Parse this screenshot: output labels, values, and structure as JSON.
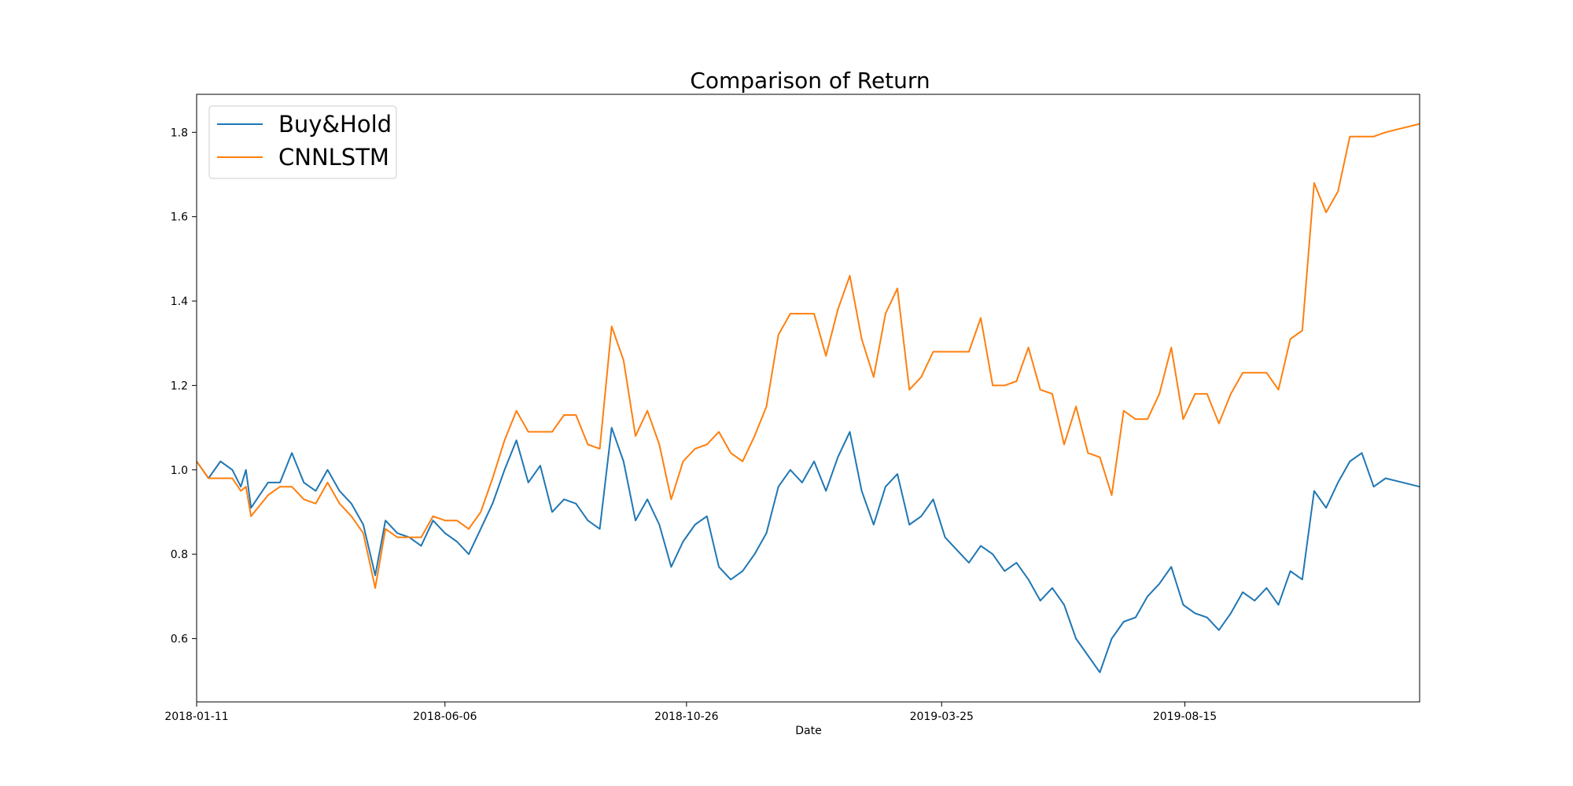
{
  "chart_data": {
    "type": "line",
    "title": "Comparison of Return",
    "xlabel": "Date",
    "ylabel": "",
    "x_range": [
      "2018-01-11",
      "2019-12-31"
    ],
    "ylim": [
      0.45,
      1.89
    ],
    "grid": false,
    "legend_position": "upper-left",
    "x_ticks": [
      "2018-01-11",
      "2018-06-06",
      "2018-10-26",
      "2019-03-25",
      "2019-08-15"
    ],
    "y_ticks": [
      "0.6",
      "0.8",
      "1.0",
      "1.2",
      "1.4",
      "1.6",
      "1.8"
    ],
    "series": [
      {
        "name": "Buy&Hold",
        "color": "#1f77b4",
        "points": [
          [
            "2018-01-11",
            1.02
          ],
          [
            "2018-01-18",
            0.98
          ],
          [
            "2018-01-25",
            1.02
          ],
          [
            "2018-02-01",
            1.0
          ],
          [
            "2018-02-06",
            0.96
          ],
          [
            "2018-02-09",
            1.0
          ],
          [
            "2018-02-12",
            0.91
          ],
          [
            "2018-02-22",
            0.97
          ],
          [
            "2018-03-01",
            0.97
          ],
          [
            "2018-03-08",
            1.04
          ],
          [
            "2018-03-15",
            0.97
          ],
          [
            "2018-03-22",
            0.95
          ],
          [
            "2018-03-29",
            1.0
          ],
          [
            "2018-04-05",
            0.95
          ],
          [
            "2018-04-12",
            0.92
          ],
          [
            "2018-04-19",
            0.87
          ],
          [
            "2018-04-26",
            0.75
          ],
          [
            "2018-05-02",
            0.88
          ],
          [
            "2018-05-09",
            0.85
          ],
          [
            "2018-05-16",
            0.84
          ],
          [
            "2018-05-23",
            0.82
          ],
          [
            "2018-05-30",
            0.88
          ],
          [
            "2018-06-06",
            0.85
          ],
          [
            "2018-06-13",
            0.83
          ],
          [
            "2018-06-20",
            0.8
          ],
          [
            "2018-06-27",
            0.86
          ],
          [
            "2018-07-04",
            0.92
          ],
          [
            "2018-07-11",
            1.0
          ],
          [
            "2018-07-18",
            1.07
          ],
          [
            "2018-07-25",
            0.97
          ],
          [
            "2018-08-01",
            1.01
          ],
          [
            "2018-08-08",
            0.9
          ],
          [
            "2018-08-15",
            0.93
          ],
          [
            "2018-08-22",
            0.92
          ],
          [
            "2018-08-29",
            0.88
          ],
          [
            "2018-09-05",
            0.86
          ],
          [
            "2018-09-12",
            1.1
          ],
          [
            "2018-09-19",
            1.02
          ],
          [
            "2018-09-26",
            0.88
          ],
          [
            "2018-10-03",
            0.93
          ],
          [
            "2018-10-10",
            0.87
          ],
          [
            "2018-10-17",
            0.77
          ],
          [
            "2018-10-24",
            0.83
          ],
          [
            "2018-10-31",
            0.87
          ],
          [
            "2018-11-07",
            0.89
          ],
          [
            "2018-11-14",
            0.77
          ],
          [
            "2018-11-21",
            0.74
          ],
          [
            "2018-11-28",
            0.76
          ],
          [
            "2018-12-05",
            0.8
          ],
          [
            "2018-12-12",
            0.85
          ],
          [
            "2018-12-19",
            0.96
          ],
          [
            "2018-12-26",
            1.0
          ],
          [
            "2019-01-02",
            0.97
          ],
          [
            "2019-01-09",
            1.02
          ],
          [
            "2019-01-16",
            0.95
          ],
          [
            "2019-01-23",
            1.03
          ],
          [
            "2019-01-30",
            1.09
          ],
          [
            "2019-02-06",
            0.95
          ],
          [
            "2019-02-13",
            0.87
          ],
          [
            "2019-02-20",
            0.96
          ],
          [
            "2019-02-27",
            0.99
          ],
          [
            "2019-03-06",
            0.87
          ],
          [
            "2019-03-13",
            0.89
          ],
          [
            "2019-03-20",
            0.93
          ],
          [
            "2019-03-27",
            0.84
          ],
          [
            "2019-04-03",
            0.81
          ],
          [
            "2019-04-10",
            0.78
          ],
          [
            "2019-04-17",
            0.82
          ],
          [
            "2019-04-24",
            0.8
          ],
          [
            "2019-05-01",
            0.76
          ],
          [
            "2019-05-08",
            0.78
          ],
          [
            "2019-05-15",
            0.74
          ],
          [
            "2019-05-22",
            0.69
          ],
          [
            "2019-05-29",
            0.72
          ],
          [
            "2019-06-05",
            0.68
          ],
          [
            "2019-06-12",
            0.6
          ],
          [
            "2019-06-19",
            0.56
          ],
          [
            "2019-06-26",
            0.52
          ],
          [
            "2019-07-03",
            0.6
          ],
          [
            "2019-07-10",
            0.64
          ],
          [
            "2019-07-17",
            0.65
          ],
          [
            "2019-07-24",
            0.7
          ],
          [
            "2019-07-31",
            0.73
          ],
          [
            "2019-08-07",
            0.77
          ],
          [
            "2019-08-14",
            0.68
          ],
          [
            "2019-08-21",
            0.66
          ],
          [
            "2019-08-28",
            0.65
          ],
          [
            "2019-09-04",
            0.62
          ],
          [
            "2019-09-11",
            0.66
          ],
          [
            "2019-09-18",
            0.71
          ],
          [
            "2019-09-25",
            0.69
          ],
          [
            "2019-10-02",
            0.72
          ],
          [
            "2019-10-09",
            0.68
          ],
          [
            "2019-10-16",
            0.76
          ],
          [
            "2019-10-23",
            0.74
          ],
          [
            "2019-10-30",
            0.95
          ],
          [
            "2019-11-06",
            0.91
          ],
          [
            "2019-11-13",
            0.97
          ],
          [
            "2019-11-20",
            1.02
          ],
          [
            "2019-11-27",
            1.04
          ],
          [
            "2019-12-04",
            0.96
          ],
          [
            "2019-12-11",
            0.98
          ],
          [
            "2019-12-31",
            0.96
          ]
        ]
      },
      {
        "name": "CNNLSTM",
        "color": "#ff7f0e",
        "points": [
          [
            "2018-01-11",
            1.02
          ],
          [
            "2018-01-18",
            0.98
          ],
          [
            "2018-01-25",
            0.98
          ],
          [
            "2018-02-01",
            0.98
          ],
          [
            "2018-02-06",
            0.95
          ],
          [
            "2018-02-09",
            0.96
          ],
          [
            "2018-02-12",
            0.89
          ],
          [
            "2018-02-22",
            0.94
          ],
          [
            "2018-03-01",
            0.96
          ],
          [
            "2018-03-08",
            0.96
          ],
          [
            "2018-03-15",
            0.93
          ],
          [
            "2018-03-22",
            0.92
          ],
          [
            "2018-03-29",
            0.97
          ],
          [
            "2018-04-05",
            0.92
          ],
          [
            "2018-04-12",
            0.89
          ],
          [
            "2018-04-19",
            0.85
          ],
          [
            "2018-04-26",
            0.72
          ],
          [
            "2018-05-02",
            0.86
          ],
          [
            "2018-05-09",
            0.84
          ],
          [
            "2018-05-16",
            0.84
          ],
          [
            "2018-05-23",
            0.84
          ],
          [
            "2018-05-30",
            0.89
          ],
          [
            "2018-06-06",
            0.88
          ],
          [
            "2018-06-13",
            0.88
          ],
          [
            "2018-06-20",
            0.86
          ],
          [
            "2018-06-27",
            0.9
          ],
          [
            "2018-07-04",
            0.98
          ],
          [
            "2018-07-11",
            1.07
          ],
          [
            "2018-07-18",
            1.14
          ],
          [
            "2018-07-25",
            1.09
          ],
          [
            "2018-08-01",
            1.09
          ],
          [
            "2018-08-08",
            1.09
          ],
          [
            "2018-08-15",
            1.13
          ],
          [
            "2018-08-22",
            1.13
          ],
          [
            "2018-08-29",
            1.06
          ],
          [
            "2018-09-05",
            1.05
          ],
          [
            "2018-09-12",
            1.34
          ],
          [
            "2018-09-19",
            1.26
          ],
          [
            "2018-09-26",
            1.08
          ],
          [
            "2018-10-03",
            1.14
          ],
          [
            "2018-10-10",
            1.06
          ],
          [
            "2018-10-17",
            0.93
          ],
          [
            "2018-10-24",
            1.02
          ],
          [
            "2018-10-31",
            1.05
          ],
          [
            "2018-11-07",
            1.06
          ],
          [
            "2018-11-14",
            1.09
          ],
          [
            "2018-11-21",
            1.04
          ],
          [
            "2018-11-28",
            1.02
          ],
          [
            "2018-12-05",
            1.08
          ],
          [
            "2018-12-12",
            1.15
          ],
          [
            "2018-12-19",
            1.32
          ],
          [
            "2018-12-26",
            1.37
          ],
          [
            "2019-01-02",
            1.37
          ],
          [
            "2019-01-09",
            1.37
          ],
          [
            "2019-01-16",
            1.27
          ],
          [
            "2019-01-23",
            1.38
          ],
          [
            "2019-01-30",
            1.46
          ],
          [
            "2019-02-06",
            1.31
          ],
          [
            "2019-02-13",
            1.22
          ],
          [
            "2019-02-20",
            1.37
          ],
          [
            "2019-02-27",
            1.43
          ],
          [
            "2019-03-06",
            1.19
          ],
          [
            "2019-03-13",
            1.22
          ],
          [
            "2019-03-20",
            1.28
          ],
          [
            "2019-03-27",
            1.28
          ],
          [
            "2019-04-03",
            1.28
          ],
          [
            "2019-04-10",
            1.28
          ],
          [
            "2019-04-17",
            1.36
          ],
          [
            "2019-04-24",
            1.2
          ],
          [
            "2019-05-01",
            1.2
          ],
          [
            "2019-05-08",
            1.21
          ],
          [
            "2019-05-15",
            1.29
          ],
          [
            "2019-05-22",
            1.19
          ],
          [
            "2019-05-29",
            1.18
          ],
          [
            "2019-06-05",
            1.06
          ],
          [
            "2019-06-12",
            1.15
          ],
          [
            "2019-06-19",
            1.04
          ],
          [
            "2019-06-26",
            1.03
          ],
          [
            "2019-07-03",
            0.94
          ],
          [
            "2019-07-10",
            1.14
          ],
          [
            "2019-07-17",
            1.12
          ],
          [
            "2019-07-24",
            1.12
          ],
          [
            "2019-07-31",
            1.18
          ],
          [
            "2019-08-07",
            1.29
          ],
          [
            "2019-08-14",
            1.12
          ],
          [
            "2019-08-21",
            1.18
          ],
          [
            "2019-08-28",
            1.18
          ],
          [
            "2019-09-04",
            1.11
          ],
          [
            "2019-09-11",
            1.18
          ],
          [
            "2019-09-18",
            1.23
          ],
          [
            "2019-09-25",
            1.23
          ],
          [
            "2019-10-02",
            1.23
          ],
          [
            "2019-10-09",
            1.19
          ],
          [
            "2019-10-16",
            1.31
          ],
          [
            "2019-10-23",
            1.33
          ],
          [
            "2019-10-30",
            1.68
          ],
          [
            "2019-11-06",
            1.61
          ],
          [
            "2019-11-13",
            1.66
          ],
          [
            "2019-11-20",
            1.79
          ],
          [
            "2019-11-27",
            1.79
          ],
          [
            "2019-12-04",
            1.79
          ],
          [
            "2019-12-11",
            1.8
          ],
          [
            "2019-12-31",
            1.82
          ]
        ]
      }
    ]
  }
}
